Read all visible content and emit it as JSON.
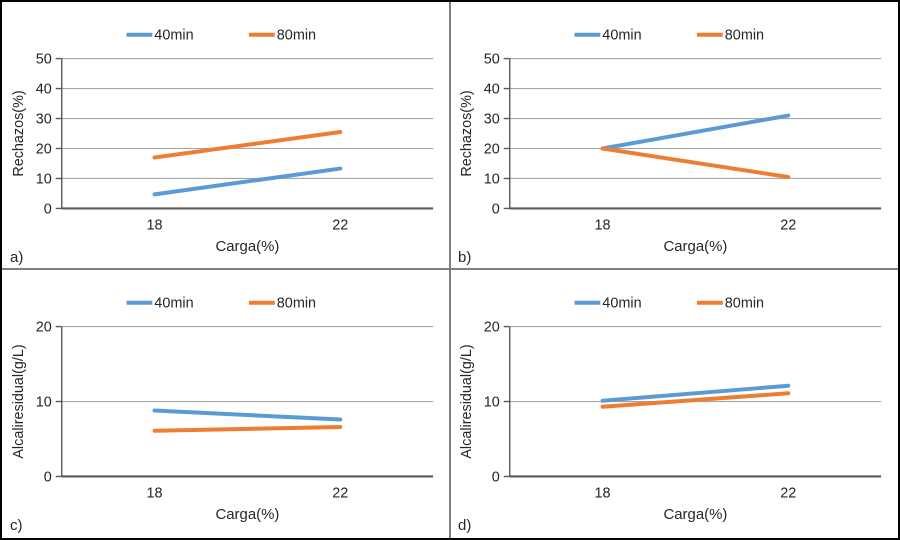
{
  "figure": {
    "description": "Four-panel line chart figure",
    "panel_labels": [
      "a)",
      "b)",
      "c)",
      "d)"
    ]
  },
  "colors": {
    "series_40min": "#5B9BD5",
    "series_80min": "#ED7D31",
    "gridline": "#A6A6A6",
    "axis": "#595959",
    "text": "#262626",
    "divider": "#7f7f7f",
    "border": "#000000",
    "background": "#ffffff"
  },
  "chart_data": [
    {
      "id": "chart-a",
      "panel_label": "a)",
      "type": "line",
      "title": "",
      "xlabel": "Carga(%)",
      "ylabel": "Rechazos(%)",
      "categories": [
        "18",
        "22"
      ],
      "x": [
        18,
        22
      ],
      "ylim": [
        0,
        50
      ],
      "yticks": [
        0,
        10,
        20,
        30,
        40,
        50
      ],
      "grid": true,
      "legend_position": "top",
      "legend": [
        "40min",
        "80min"
      ],
      "series": [
        {
          "name": "40min",
          "values": [
            4.7,
            13.3
          ],
          "color": "#5B9BD5"
        },
        {
          "name": "80min",
          "values": [
            17,
            25.5
          ],
          "color": "#ED7D31"
        }
      ]
    },
    {
      "id": "chart-b",
      "panel_label": "b)",
      "type": "line",
      "title": "",
      "xlabel": "Carga(%)",
      "ylabel": "Rechazos(%)",
      "categories": [
        "18",
        "22"
      ],
      "x": [
        18,
        22
      ],
      "ylim": [
        0,
        50
      ],
      "yticks": [
        0,
        10,
        20,
        30,
        40,
        50
      ],
      "grid": true,
      "legend_position": "top",
      "legend": [
        "40min",
        "80min"
      ],
      "series": [
        {
          "name": "40min",
          "values": [
            20,
            31
          ],
          "color": "#5B9BD5"
        },
        {
          "name": "80min",
          "values": [
            20,
            10.5
          ],
          "color": "#ED7D31"
        }
      ]
    },
    {
      "id": "chart-c",
      "panel_label": "c)",
      "type": "line",
      "title": "",
      "xlabel": "Carga(%)",
      "ylabel": "Alcaliresidual(g/L)",
      "categories": [
        "18",
        "22"
      ],
      "x": [
        18,
        22
      ],
      "ylim": [
        0,
        20
      ],
      "yticks": [
        0,
        10,
        20
      ],
      "grid": true,
      "legend_position": "top",
      "legend": [
        "40min",
        "80min"
      ],
      "series": [
        {
          "name": "40min",
          "values": [
            8.8,
            7.6
          ],
          "color": "#5B9BD5"
        },
        {
          "name": "80min",
          "values": [
            6.1,
            6.6
          ],
          "color": "#ED7D31"
        }
      ]
    },
    {
      "id": "chart-d",
      "panel_label": "d)",
      "type": "line",
      "title": "",
      "xlabel": "Carga(%)",
      "ylabel": "Alcaliresidual(g/L)",
      "categories": [
        "18",
        "22"
      ],
      "x": [
        18,
        22
      ],
      "ylim": [
        0,
        20
      ],
      "yticks": [
        0,
        10,
        20
      ],
      "grid": true,
      "legend_position": "top",
      "legend": [
        "40min",
        "80min"
      ],
      "series": [
        {
          "name": "40min",
          "values": [
            10.1,
            12.1
          ],
          "color": "#5B9BD5"
        },
        {
          "name": "80min",
          "values": [
            9.3,
            11.1
          ],
          "color": "#ED7D31"
        }
      ]
    }
  ]
}
